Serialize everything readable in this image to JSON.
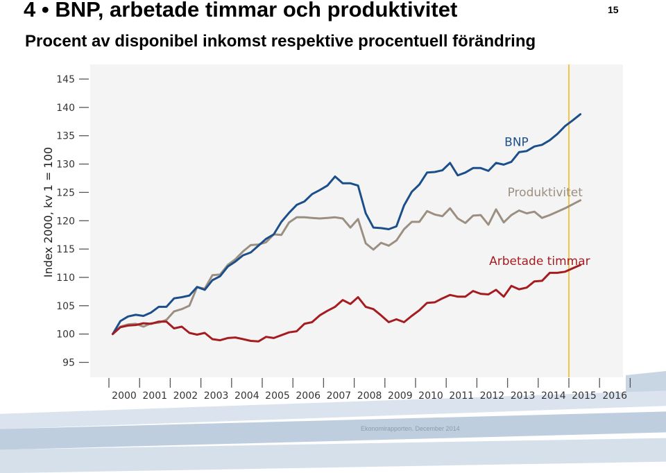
{
  "header": {
    "slide_number": "4",
    "bullet": "•",
    "title": "BNP, arbetade timmar och produktivitet",
    "page_number": "15",
    "subtitle": "Procent av disponibel inkomst respektive procentuell förändring"
  },
  "footer": {
    "source": "Ekonomirapporten. December 2014"
  },
  "colors": {
    "bnp": "#1c4f8a",
    "produktivitet": "#9a8f80",
    "timmar": "#a51c20",
    "vline": "#f2c031",
    "plot_bg": "#f4f4f4",
    "band": "#c8d5e3"
  },
  "chart_data": {
    "type": "line",
    "ylabel": "Index 2000, kv 1 = 100",
    "ylim": [
      95,
      145
    ],
    "yticks": [
      95,
      100,
      105,
      110,
      115,
      120,
      125,
      130,
      135,
      140,
      145
    ],
    "xlim": [
      2000,
      2017
    ],
    "year_labels": [
      "2000",
      "2001",
      "2002",
      "2003",
      "2004",
      "2005",
      "2006",
      "2007",
      "2008",
      "2009",
      "2010",
      "2011",
      "2012",
      "2013",
      "2014",
      "2015",
      "2016"
    ],
    "vline_x": 2015.0,
    "x_start": 2000.125,
    "x_step": 0.25,
    "grid": false,
    "series": [
      {
        "name": "BNP",
        "key": "bnp",
        "label_at": [
          2012.9,
          133.2
        ],
        "values": [
          100.0,
          102.3,
          103.1,
          103.4,
          103.2,
          103.8,
          104.8,
          104.8,
          106.3,
          106.5,
          106.8,
          108.3,
          107.8,
          109.5,
          110.2,
          111.9,
          112.8,
          113.9,
          114.4,
          115.6,
          116.8,
          117.6,
          119.8,
          121.4,
          122.8,
          123.4,
          124.7,
          125.4,
          126.2,
          127.8,
          126.6,
          126.6,
          126.2,
          121.3,
          118.8,
          118.7,
          118.5,
          119.0,
          122.7,
          125.1,
          126.4,
          128.5,
          128.6,
          128.9,
          130.2,
          128.0,
          128.5,
          129.3,
          129.3,
          128.8,
          130.2,
          129.9,
          130.4,
          132.1,
          132.3,
          133.1,
          133.4,
          134.2,
          135.3,
          136.7,
          137.7,
          138.8
        ]
      },
      {
        "name": "Produktivitet",
        "key": "produktivitet",
        "label_at": [
          2013.0,
          124.3
        ],
        "values": [
          100.0,
          101.3,
          101.7,
          101.8,
          101.3,
          101.9,
          102.0,
          102.5,
          104.0,
          104.4,
          105.0,
          108.3,
          108.0,
          110.4,
          110.5,
          112.2,
          113.2,
          114.6,
          115.7,
          115.8,
          116.2,
          117.6,
          117.5,
          119.7,
          120.6,
          120.6,
          120.5,
          120.4,
          120.5,
          120.6,
          120.4,
          118.8,
          120.3,
          116.0,
          114.9,
          116.1,
          115.6,
          116.5,
          118.5,
          119.8,
          119.8,
          121.7,
          121.1,
          120.8,
          122.2,
          120.4,
          119.6,
          120.9,
          121.0,
          119.3,
          122.0,
          119.7,
          121.0,
          121.8,
          121.3,
          121.6,
          120.5,
          121.0,
          121.6,
          122.2,
          122.9,
          123.6
        ]
      },
      {
        "name": "Arbetade timmar",
        "key": "timmar",
        "label_at": [
          2012.4,
          112.2
        ],
        "values": [
          100.0,
          101.2,
          101.5,
          101.6,
          101.9,
          101.8,
          102.2,
          102.2,
          101.0,
          101.3,
          100.2,
          99.9,
          100.2,
          99.1,
          98.9,
          99.3,
          99.4,
          99.1,
          98.8,
          98.7,
          99.5,
          99.3,
          99.8,
          100.3,
          100.5,
          101.8,
          102.1,
          103.3,
          104.1,
          104.8,
          106.0,
          105.3,
          106.5,
          104.8,
          104.4,
          103.3,
          102.1,
          102.6,
          102.1,
          103.2,
          104.2,
          105.5,
          105.6,
          106.3,
          106.9,
          106.6,
          106.6,
          107.6,
          107.1,
          107.0,
          107.8,
          106.6,
          108.5,
          107.9,
          108.2,
          109.3,
          109.4,
          110.8,
          110.8,
          111.0,
          111.6,
          112.2
        ]
      }
    ]
  }
}
